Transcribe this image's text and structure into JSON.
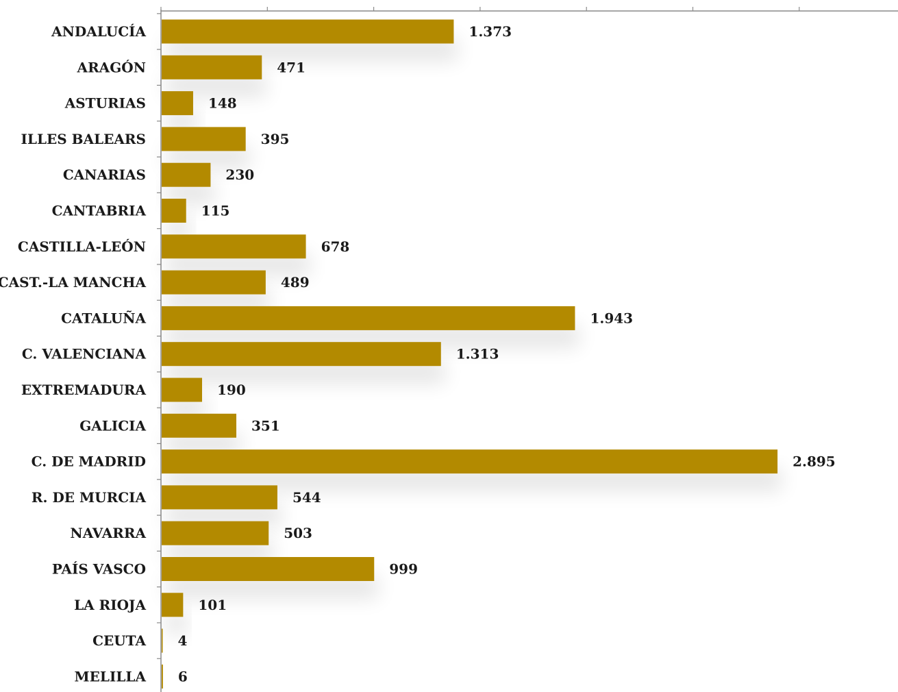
{
  "chart_data": {
    "type": "bar",
    "orientation": "horizontal",
    "title": "",
    "xlabel": "",
    "ylabel": "",
    "categories": [
      "ANDALUCÍA",
      "ARAGÓN",
      "ASTURIAS",
      "ILLES BALEARS",
      "CANARIAS",
      "CANTABRIA",
      "CASTILLA-LEÓN",
      "CAST.-LA MANCHA",
      "CATALUÑA",
      "C. VALENCIANA",
      "EXTREMADURA",
      "GALICIA",
      "C. DE MADRID",
      "R. DE MURCIA",
      "NAVARRA",
      "PAÍS VASCO",
      "LA RIOJA",
      "CEUTA",
      "MELILLA"
    ],
    "values": [
      1373,
      471,
      148,
      395,
      230,
      115,
      678,
      489,
      1943,
      1313,
      190,
      351,
      2895,
      544,
      503,
      999,
      101,
      4,
      6
    ],
    "value_labels": [
      "1.373",
      "471",
      "148",
      "395",
      "230",
      "115",
      "678",
      "489",
      "1.943",
      "1.313",
      "190",
      "351",
      "2.895",
      "544",
      "503",
      "999",
      "101",
      "4",
      "6"
    ],
    "xlim": [
      0,
      3500
    ],
    "axis_position": "top",
    "tick_labels_visible": false,
    "grid": false,
    "legend": "none",
    "bar_color": "#B38A00",
    "axis_color": "#8A8A8A"
  }
}
